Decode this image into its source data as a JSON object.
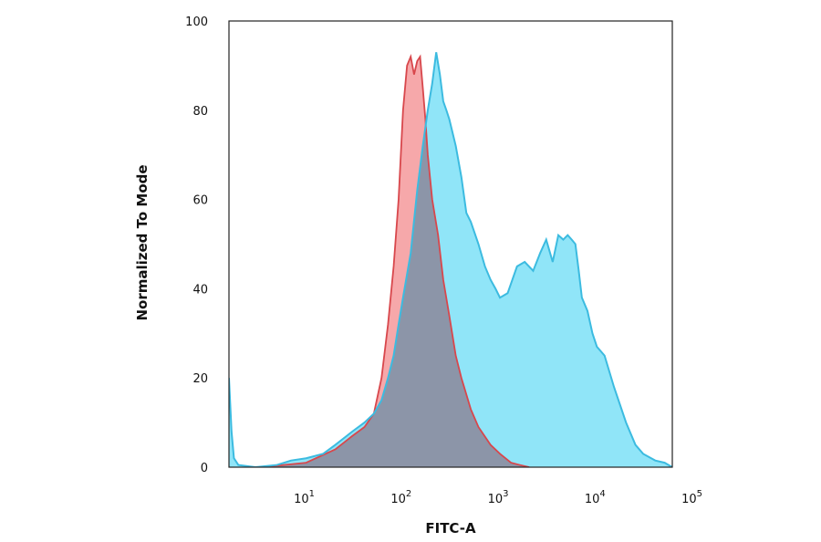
{
  "chart_data": {
    "type": "area",
    "title": "",
    "xlabel": "FITC-A",
    "ylabel": "Normalized To Mode",
    "x_scale": "log",
    "xlim": [
      1.6,
      60000
    ],
    "ylim": [
      0,
      100
    ],
    "x_ticks": [
      {
        "value": 10,
        "base": "10",
        "exp": "1"
      },
      {
        "value": 100,
        "base": "10",
        "exp": "2"
      },
      {
        "value": 1000,
        "base": "10",
        "exp": "3"
      },
      {
        "value": 10000,
        "base": "10",
        "exp": "4"
      },
      {
        "value": 100000,
        "base": "10",
        "exp": "5"
      }
    ],
    "y_ticks": [
      {
        "value": 0,
        "label": "0"
      },
      {
        "value": 20,
        "label": "20"
      },
      {
        "value": 40,
        "label": "40"
      },
      {
        "value": 60,
        "label": "60"
      },
      {
        "value": 80,
        "label": "80"
      },
      {
        "value": 100,
        "label": "100"
      }
    ],
    "grid": false,
    "series": [
      {
        "fill": "#f5a3a5",
        "stroke": "#d8474c",
        "x": [
          3.5,
          10,
          20,
          30,
          40,
          50,
          60,
          70,
          80,
          90,
          100,
          110,
          120,
          130,
          140,
          150,
          160,
          170,
          180,
          200,
          230,
          260,
          300,
          350,
          400,
          500,
          600,
          800,
          1000,
          1300,
          1600,
          2000
        ],
        "y": [
          0,
          1,
          4,
          7,
          9,
          12,
          20,
          32,
          45,
          60,
          80,
          90,
          92,
          88,
          91,
          92,
          85,
          78,
          70,
          60,
          52,
          42,
          34,
          25,
          20,
          13,
          9,
          5,
          3,
          1,
          0.5,
          0
        ]
      },
      {
        "fill": "#7ce1f7",
        "stroke": "#3cbbe0",
        "x": [
          1.6,
          1.7,
          1.8,
          2,
          3,
          5,
          7,
          10,
          15,
          20,
          30,
          40,
          50,
          60,
          70,
          80,
          90,
          100,
          120,
          140,
          160,
          180,
          200,
          220,
          240,
          260,
          280,
          300,
          350,
          400,
          450,
          500,
          600,
          700,
          800,
          900,
          1000,
          1200,
          1500,
          1800,
          2200,
          2600,
          3000,
          3500,
          4000,
          4500,
          5000,
          5500,
          6000,
          6500,
          7000,
          8000,
          9000,
          10000,
          12000,
          15000,
          20000,
          25000,
          30000,
          40000,
          50000,
          60000
        ],
        "y": [
          20,
          8,
          2,
          0.5,
          0,
          0.5,
          1.5,
          2,
          3,
          5,
          8,
          10,
          12,
          15,
          20,
          25,
          32,
          38,
          48,
          62,
          72,
          80,
          86,
          93,
          88,
          82,
          80,
          78,
          72,
          65,
          57,
          55,
          50,
          45,
          42,
          40,
          38,
          39,
          45,
          46,
          44,
          48,
          51,
          46,
          52,
          51,
          52,
          51,
          50,
          44,
          38,
          35,
          30,
          27,
          25,
          18,
          10,
          5,
          3,
          1.5,
          1,
          0
        ]
      },
      {
        "fill": "#8c95a8",
        "stroke": "#8c8fa5"
      }
    ]
  }
}
